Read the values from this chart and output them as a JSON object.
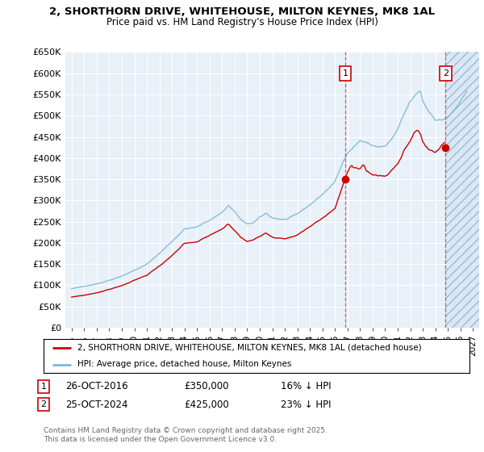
{
  "title": "2, SHORTHORN DRIVE, WHITEHOUSE, MILTON KEYNES, MK8 1AL",
  "subtitle": "Price paid vs. HM Land Registry's House Price Index (HPI)",
  "ylim": [
    0,
    650000
  ],
  "yticks": [
    0,
    50000,
    100000,
    150000,
    200000,
    250000,
    300000,
    350000,
    400000,
    450000,
    500000,
    550000,
    600000,
    650000
  ],
  "ytick_labels": [
    "£0",
    "£50K",
    "£100K",
    "£150K",
    "£200K",
    "£250K",
    "£300K",
    "£350K",
    "£400K",
    "£450K",
    "£500K",
    "£550K",
    "£600K",
    "£650K"
  ],
  "hpi_color": "#7ab8d8",
  "price_color": "#cc0000",
  "marker1_date": 2016.82,
  "marker2_date": 2024.82,
  "marker1_price": 350000,
  "marker2_price": 425000,
  "sale1_label": "26-OCT-2016",
  "sale2_label": "25-OCT-2024",
  "sale1_price_label": "£350,000",
  "sale2_price_label": "£425,000",
  "sale1_hpi_label": "16% ↓ HPI",
  "sale2_hpi_label": "23% ↓ HPI",
  "legend_house": "2, SHORTHORN DRIVE, WHITEHOUSE, MILTON KEYNES, MK8 1AL (detached house)",
  "legend_hpi": "HPI: Average price, detached house, Milton Keynes",
  "footer": "Contains HM Land Registry data © Crown copyright and database right 2025.\nThis data is licensed under the Open Government Licence v3.0.",
  "bg_color": "#ffffff",
  "plot_bg_color": "#e8f0f8",
  "grid_color": "#ffffff",
  "xmin": 1994.5,
  "xmax": 2027.5
}
